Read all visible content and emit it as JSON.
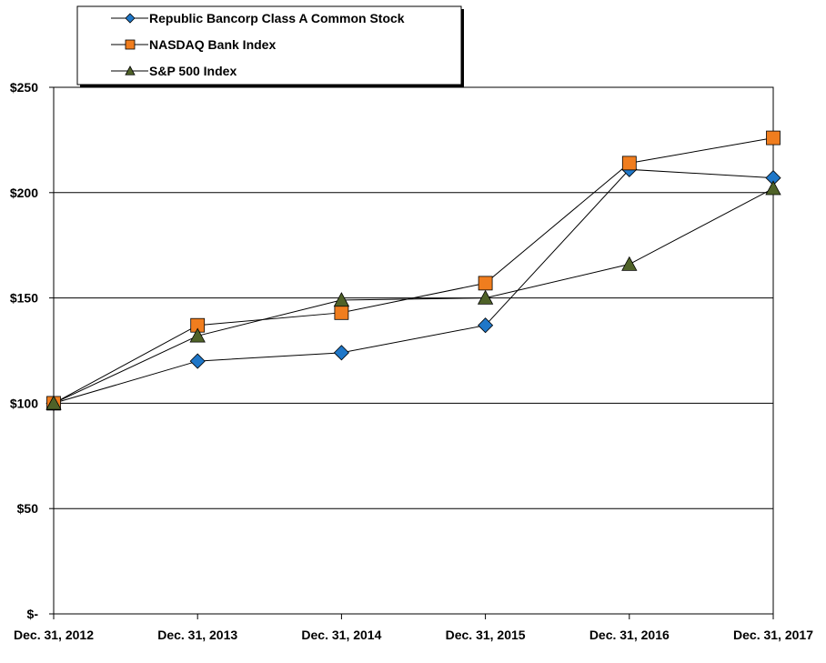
{
  "chart_data": {
    "type": "line",
    "title": "",
    "xlabel": "",
    "ylabel": "",
    "categories": [
      "Dec. 31, 2012",
      "Dec. 31, 2013",
      "Dec. 31, 2014",
      "Dec. 31, 2015",
      "Dec. 31, 2016",
      "Dec. 31, 2017"
    ],
    "ylim": [
      0,
      250
    ],
    "yticks": [
      0,
      50,
      100,
      150,
      200,
      250
    ],
    "ytick_labels": [
      "$-",
      "$50",
      "$100",
      "$150",
      "$200",
      "$250"
    ],
    "grid": true,
    "legend_position": "top-left",
    "series": [
      {
        "name": "Republic Bancorp Class A Common Stock",
        "marker": "diamond",
        "color": "#1F77C8",
        "values": [
          100,
          120,
          124,
          137,
          211,
          207
        ]
      },
      {
        "name": "NASDAQ Bank Index",
        "marker": "square",
        "color": "#F07D1E",
        "values": [
          100,
          137,
          143,
          157,
          214,
          226
        ]
      },
      {
        "name": "S&P 500 Index",
        "marker": "triangle",
        "color": "#4F6228",
        "values": [
          100,
          132,
          149,
          150,
          166,
          202
        ]
      }
    ]
  }
}
